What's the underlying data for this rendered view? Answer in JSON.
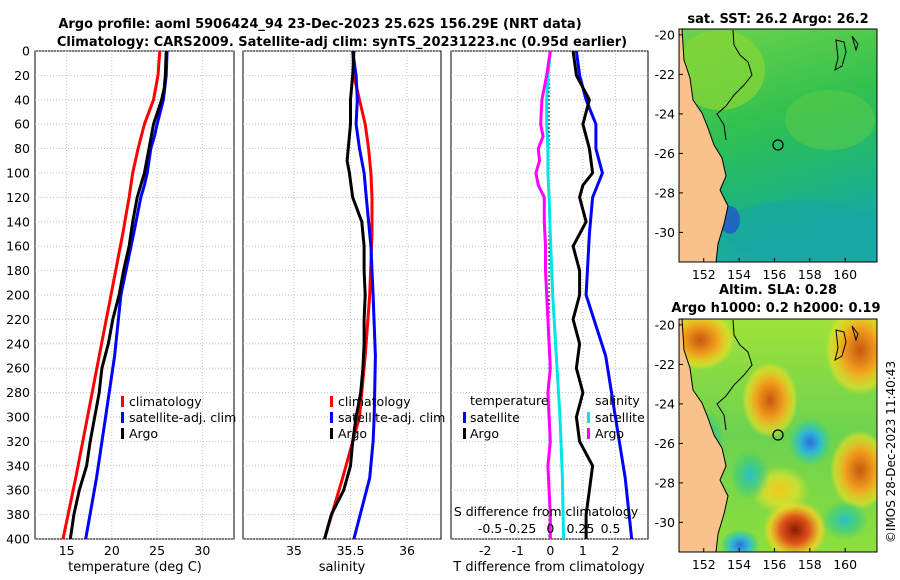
{
  "header": {
    "line1": "Argo profile: aoml 5906424_94 23-Dec-2023 25.62S 156.29E (NRT data)",
    "line2": "Climatology: CARS2009. Satellite-adj clim: synTS_20231223.nc (0.95d earlier)"
  },
  "colors": {
    "climatology": "#ff0000",
    "satellite": "#0000ff",
    "argo": "#000000",
    "s_diff": "#ff00ff",
    "t_sat_diff": "#00e5e5"
  },
  "chart_data": [
    {
      "id": "temperature",
      "type": "line",
      "xlabel": "temperature (deg C)",
      "ylabel": "",
      "xlim": [
        11.5,
        33.5
      ],
      "ylim": [
        400,
        0
      ],
      "xticks": [
        15,
        20,
        25,
        30
      ],
      "yticks": [
        0,
        20,
        40,
        60,
        80,
        100,
        120,
        140,
        160,
        180,
        200,
        220,
        240,
        260,
        280,
        300,
        320,
        340,
        360,
        380,
        400
      ],
      "grid": true,
      "legend": {
        "position": "lower-right",
        "entries": [
          "climatology",
          "satellite-adj. clim",
          "Argo"
        ]
      },
      "series": [
        {
          "name": "climatology",
          "color": "#ff0000",
          "depth": [
            0,
            20,
            40,
            60,
            80,
            100,
            120,
            150,
            200,
            250,
            300,
            350,
            400
          ],
          "values": [
            25.3,
            25.1,
            24.6,
            23.6,
            22.9,
            22.3,
            21.9,
            21.2,
            19.9,
            18.6,
            17.3,
            16.0,
            14.6
          ]
        },
        {
          "name": "satellite-adj. clim",
          "color": "#0000ff",
          "depth": [
            0,
            20,
            40,
            60,
            70,
            80,
            100,
            110,
            120,
            150,
            200,
            250,
            300,
            350,
            400
          ],
          "values": [
            26.1,
            26.0,
            25.7,
            25.0,
            24.7,
            24.3,
            23.9,
            23.6,
            23.2,
            22.4,
            21.0,
            20.3,
            19.3,
            18.3,
            17.1
          ]
        },
        {
          "name": "Argo",
          "color": "#000000",
          "depth": [
            0,
            20,
            30,
            40,
            60,
            80,
            100,
            120,
            140,
            160,
            180,
            200,
            220,
            240,
            260,
            280,
            300,
            320,
            340,
            360,
            380,
            400
          ],
          "values": [
            26.0,
            25.9,
            25.8,
            25.5,
            24.6,
            24.1,
            23.6,
            22.8,
            22.3,
            21.9,
            21.3,
            20.8,
            20.1,
            19.6,
            18.9,
            18.6,
            18.1,
            17.6,
            17.2,
            16.4,
            15.8,
            15.4
          ]
        }
      ]
    },
    {
      "id": "salinity",
      "type": "line",
      "xlabel": "salinity",
      "ylabel": "",
      "xlim": [
        34.55,
        36.3
      ],
      "ylim": [
        400,
        0
      ],
      "xticks": [
        35,
        35.5,
        36
      ],
      "xtick_labels": [
        "35",
        "35.5",
        "36"
      ],
      "grid": true,
      "legend": {
        "position": "lower-right",
        "entries": [
          "climatology",
          "satellite-adj. clim",
          "Argo"
        ]
      },
      "series": [
        {
          "name": "climatology",
          "color": "#ff0000",
          "depth": [
            0,
            20,
            40,
            60,
            80,
            100,
            120,
            150,
            200,
            250,
            300,
            350,
            400
          ],
          "values": [
            35.52,
            35.53,
            35.58,
            35.63,
            35.66,
            35.68,
            35.69,
            35.69,
            35.67,
            35.63,
            35.58,
            35.43,
            35.27
          ]
        },
        {
          "name": "satellite-adj. clim",
          "color": "#0000ff",
          "depth": [
            0,
            20,
            40,
            60,
            80,
            100,
            120,
            140,
            160,
            180,
            200,
            250,
            300,
            320,
            350,
            400
          ],
          "values": [
            35.52,
            35.55,
            35.56,
            35.55,
            35.58,
            35.62,
            35.64,
            35.66,
            35.68,
            35.69,
            35.7,
            35.72,
            35.71,
            35.7,
            35.67,
            35.53
          ]
        },
        {
          "name": "Argo",
          "color": "#000000",
          "depth": [
            0,
            20,
            40,
            60,
            80,
            90,
            100,
            120,
            140,
            160,
            180,
            200,
            220,
            240,
            260,
            280,
            300,
            320,
            340,
            360,
            380,
            400
          ],
          "values": [
            35.53,
            35.52,
            35.5,
            35.5,
            35.48,
            35.47,
            35.49,
            35.52,
            35.6,
            35.62,
            35.62,
            35.63,
            35.62,
            35.62,
            35.61,
            35.59,
            35.55,
            35.52,
            35.5,
            35.44,
            35.33,
            35.27
          ]
        }
      ]
    },
    {
      "id": "difference",
      "type": "line",
      "xlabel": "T difference from climatology",
      "ylabel": "",
      "xlim": [
        -3.05,
        3.0
      ],
      "ylim": [
        400,
        0
      ],
      "xticks": [
        -2,
        -1,
        0,
        1,
        2
      ],
      "top_axis_label": "S difference from climatology",
      "top_ticks": [
        "-0.5",
        "-0.25",
        "0",
        "0.25",
        "0.5"
      ],
      "s_scale": 3.7,
      "grid": true,
      "legend_temperature": {
        "title": "temperature",
        "entries": [
          "satellite",
          "Argo"
        ]
      },
      "legend_salinity": {
        "title": "salinity",
        "entries": [
          "satellite",
          "Argo"
        ]
      },
      "series": [
        {
          "name": "T satellite",
          "color": "#0000ff",
          "depth": [
            0,
            20,
            40,
            60,
            80,
            100,
            120,
            150,
            200,
            250,
            300,
            350,
            400
          ],
          "values": [
            0.8,
            0.9,
            1.1,
            1.4,
            1.4,
            1.6,
            1.3,
            1.2,
            1.1,
            1.7,
            2.0,
            2.3,
            2.5
          ]
        },
        {
          "name": "T Argo",
          "color": "#000000",
          "depth": [
            0,
            20,
            40,
            60,
            80,
            100,
            110,
            120,
            140,
            160,
            180,
            200,
            220,
            240,
            260,
            280,
            300,
            320,
            340,
            360,
            380,
            400
          ],
          "values": [
            0.7,
            0.8,
            1.2,
            1.0,
            1.2,
            1.3,
            1.0,
            0.9,
            1.1,
            0.7,
            0.9,
            0.9,
            0.7,
            0.9,
            0.8,
            1.0,
            0.8,
            0.9,
            1.3,
            1.2,
            1.1,
            1.1
          ]
        },
        {
          "name": "S satellite",
          "color": "#00e5e5",
          "depth": [
            0,
            20,
            40,
            60,
            80,
            100,
            120,
            150,
            200,
            250,
            300,
            350,
            400
          ],
          "values": [
            0.0,
            -0.02,
            -0.03,
            -0.03,
            -0.02,
            -0.02,
            -0.01,
            0.0,
            0.02,
            0.05,
            0.08,
            0.1,
            0.11
          ]
        },
        {
          "name": "S Argo",
          "color": "#ff00ff",
          "depth": [
            0,
            20,
            40,
            60,
            70,
            80,
            90,
            100,
            110,
            120,
            140,
            160,
            180,
            200,
            220,
            240,
            260,
            280,
            300,
            320,
            340,
            360,
            380,
            400
          ],
          "values": [
            0.0,
            -0.03,
            -0.07,
            -0.08,
            -0.06,
            -0.1,
            -0.09,
            -0.12,
            -0.1,
            -0.05,
            -0.05,
            -0.04,
            -0.04,
            -0.03,
            -0.02,
            -0.01,
            0.0,
            -0.02,
            -0.01,
            0.0,
            -0.02,
            -0.01,
            0.0,
            0.0
          ]
        }
      ]
    },
    {
      "id": "sst_map",
      "type": "heatmap",
      "title": "sat. SST: 26.2 Argo: 26.2",
      "xticks": [
        152,
        154,
        156,
        158,
        160
      ],
      "yticks": [
        -20,
        -22,
        -24,
        -26,
        -28,
        -30
      ],
      "xlim": [
        150.6,
        161.8
      ],
      "ylim": [
        -31.5,
        -19.7
      ],
      "argo_position": [
        156.29,
        -25.62
      ]
    },
    {
      "id": "sla_map",
      "type": "heatmap",
      "title": "Altim. SLA: 0.28",
      "subtitle": "Argo h1000: 0.2 h2000: 0.19",
      "xticks": [
        152,
        154,
        156,
        158,
        160
      ],
      "yticks": [
        -20,
        -22,
        -24,
        -26,
        -28,
        -30
      ],
      "xlim": [
        150.6,
        161.8
      ],
      "ylim": [
        -31.5,
        -19.7
      ],
      "argo_position": [
        156.29,
        -25.62
      ]
    }
  ],
  "footer": {
    "credit": "©IMOS 28-Dec-2023 11:40:43"
  }
}
